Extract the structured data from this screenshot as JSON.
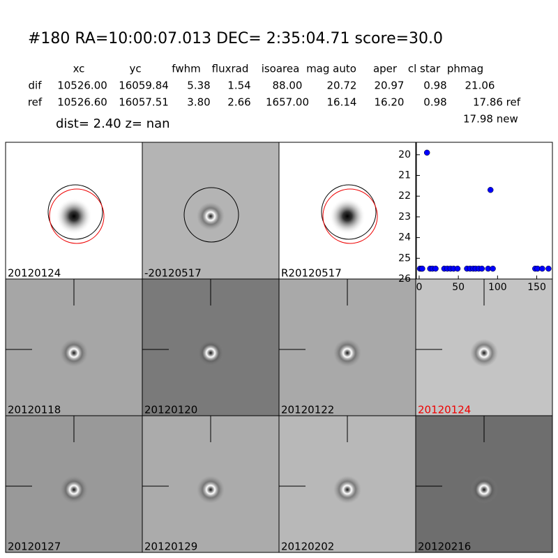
{
  "header": {
    "title": "#180   RA=10:00:07.013 DEC= 2:35:04.71       score=30.0",
    "dist": "dist=  2.40      z=   nan",
    "extra": "17.98 new"
  },
  "table": {
    "columns": [
      "xc",
      "yc",
      "fwhm",
      "fluxrad",
      "isoarea",
      "mag auto",
      "aper",
      "cl star",
      "phmag"
    ],
    "rows": [
      [
        "dif",
        "10526.00",
        "16059.84",
        "5.38",
        "1.54",
        "88.00",
        "20.72",
        "20.97",
        "0.98",
        "21.06"
      ],
      [
        "ref",
        "10526.60",
        "16057.51",
        "3.80",
        "2.66",
        "1657.00",
        "16.14",
        "16.20",
        "0.98",
        "17.86 ref"
      ]
    ]
  },
  "panels": [
    "20120124",
    "-20120517",
    "R20120517",
    "20120118",
    "20120120",
    "20120122",
    "20120124",
    "20120127",
    "20120129",
    "20120202",
    "20120216"
  ],
  "chart_data": {
    "type": "scatter",
    "color": "#0000ff",
    "invert_y": true,
    "x": [
      1,
      3,
      4,
      10,
      14,
      17,
      21,
      32,
      36,
      40,
      44,
      49,
      61,
      65,
      69,
      72,
      76,
      80,
      88,
      91,
      94,
      148,
      151,
      157,
      165
    ],
    "y": [
      25.5,
      25.5,
      25.5,
      19.9,
      25.5,
      25.5,
      25.5,
      25.5,
      25.5,
      25.5,
      25.5,
      25.5,
      25.5,
      25.5,
      25.5,
      25.5,
      25.5,
      25.5,
      25.5,
      21.7,
      25.5,
      25.5,
      25.5,
      25.5,
      25.5
    ],
    "xlim": [
      -3.5,
      170
    ],
    "ylim": [
      19.4,
      26
    ],
    "xticks": [
      0,
      50,
      100,
      150
    ],
    "yticks": [
      20,
      21,
      22,
      23,
      24,
      25,
      26
    ]
  }
}
